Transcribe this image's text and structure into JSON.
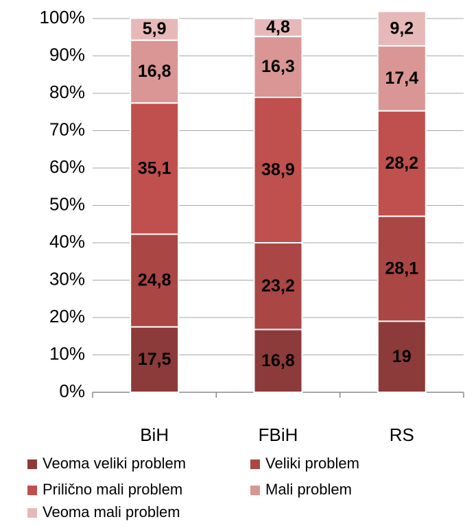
{
  "chart_data": {
    "type": "stacked_bar",
    "categories": [
      "BiH",
      "FBiH",
      "RS"
    ],
    "series": [
      {
        "name": "Veoma veliki problem",
        "color": "#8c3b3a",
        "values": [
          17.5,
          16.8,
          19
        ],
        "value_labels": [
          "17,5",
          "16,8",
          "19"
        ]
      },
      {
        "name": "Veliki problem",
        "color": "#aa4643",
        "values": [
          24.8,
          23.2,
          28.1
        ],
        "value_labels": [
          "24,8",
          "23,2",
          "28,1"
        ]
      },
      {
        "name": "Prilično mali problem",
        "color": "#c0504d",
        "values": [
          35.1,
          38.9,
          28.2
        ],
        "value_labels": [
          "35,1",
          "38,9",
          "28,2"
        ]
      },
      {
        "name": "Mali problem",
        "color": "#d99694",
        "values": [
          16.8,
          16.3,
          17.4
        ],
        "value_labels": [
          "16,8",
          "16,3",
          "17,4"
        ]
      },
      {
        "name": "Veoma mali problem",
        "color": "#e6b9b8",
        "values": [
          5.9,
          4.8,
          9.2
        ],
        "value_labels": [
          "5,9",
          "4,8",
          "9,2"
        ]
      }
    ],
    "ylim": [
      0,
      100
    ],
    "yticks": [
      {
        "value": 0,
        "label": "0%"
      },
      {
        "value": 10,
        "label": "10%"
      },
      {
        "value": 20,
        "label": "20%"
      },
      {
        "value": 30,
        "label": "30%"
      },
      {
        "value": 40,
        "label": "40%"
      },
      {
        "value": 50,
        "label": "50%"
      },
      {
        "value": 60,
        "label": "60%"
      },
      {
        "value": 70,
        "label": "70%"
      },
      {
        "value": 80,
        "label": "80%"
      },
      {
        "value": 90,
        "label": "90%"
      },
      {
        "value": 100,
        "label": "100%"
      }
    ],
    "grid": true
  }
}
